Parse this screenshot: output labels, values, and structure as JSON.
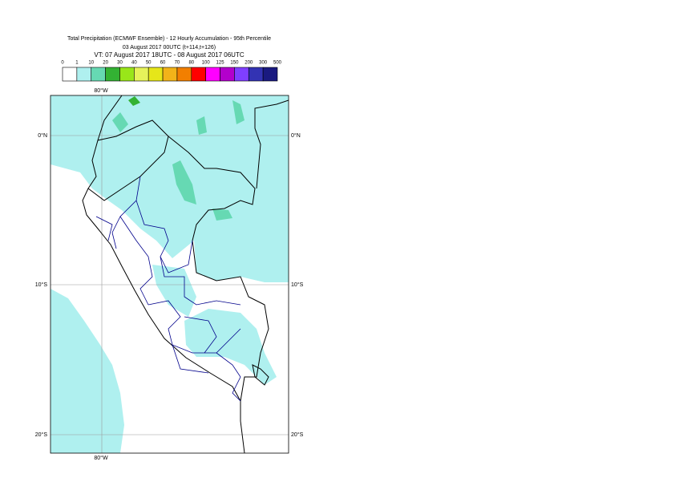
{
  "header": {
    "title": "Total Precipitation (ECMWF Ensemble) - 12 Hourly Accumulation - 95th Percentile",
    "base": "03 August 2017 00UTC (t+114,t+126)",
    "valid": "VT: 07 August 2017 18UTC - 08 August 2017 06UTC"
  },
  "legend": {
    "labels": [
      0,
      1,
      10,
      20,
      30,
      40,
      50,
      60,
      70,
      80,
      100,
      125,
      150,
      200,
      300,
      500
    ],
    "colors": [
      "#ffffff",
      "#aff0ef",
      "#66d9b3",
      "#33b233",
      "#99e619",
      "#e6f25a",
      "#e6e619",
      "#f2b319",
      "#f27f00",
      "#ff0000",
      "#ff00ff",
      "#b300cc",
      "#7f3fff",
      "#3333b3",
      "#1a1a80"
    ]
  },
  "map": {
    "lon_label": "80°W",
    "lat_labels": [
      "0°N",
      "10°S",
      "20°S"
    ]
  }
}
